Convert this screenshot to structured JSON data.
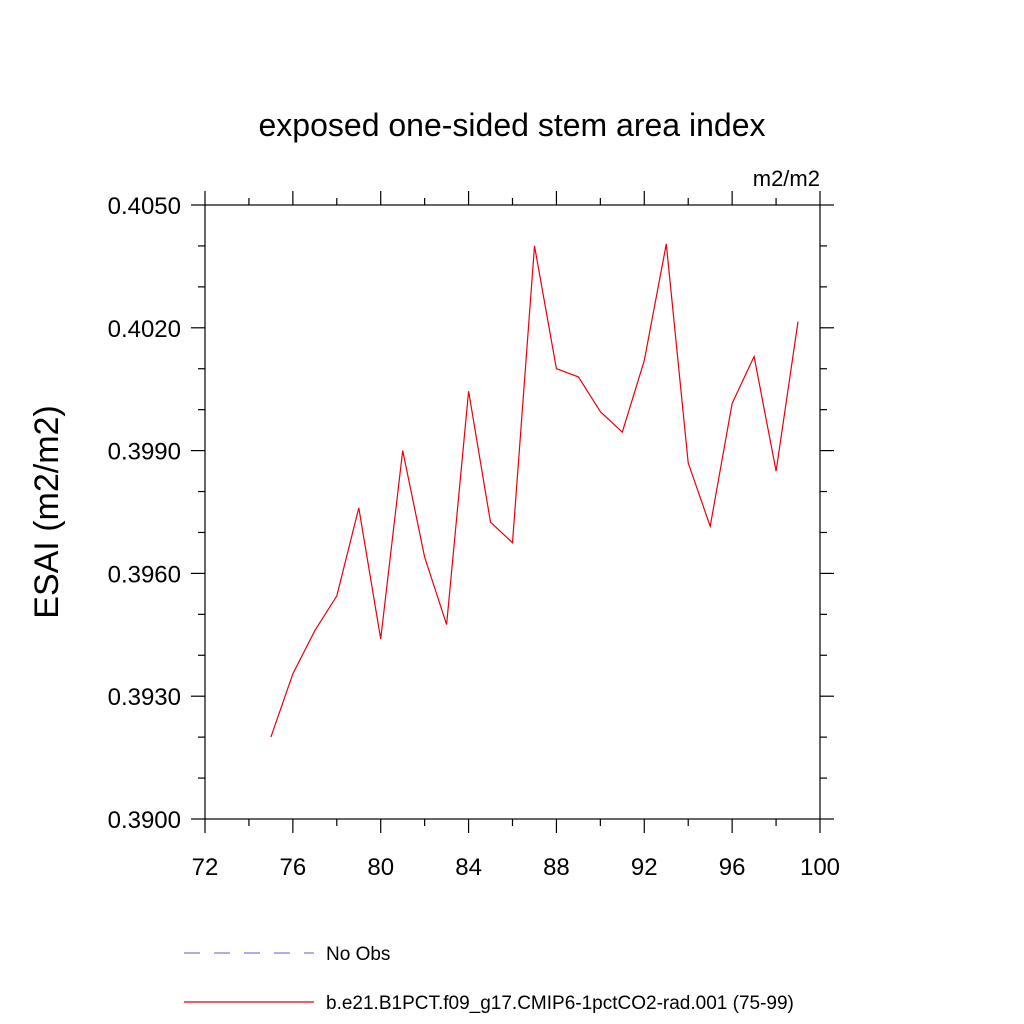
{
  "chart_data": {
    "type": "line",
    "title": "exposed one-sided stem area index",
    "units": "m2/m2",
    "ylabel": "ESAI  (m2/m2)",
    "xlabel": "",
    "xlim": [
      72,
      100
    ],
    "ylim": [
      0.39,
      0.405
    ],
    "x_ticks": [
      "72",
      "76",
      "80",
      "84",
      "88",
      "92",
      "96",
      "100"
    ],
    "y_ticks": [
      "0.3900",
      "0.3930",
      "0.3960",
      "0.3990",
      "0.4020",
      "0.4050"
    ],
    "grid": false,
    "legend_position": "bottom",
    "series": [
      {
        "name": "No Obs",
        "color": "#7b7bd6",
        "style": "dashed",
        "x": [],
        "y": []
      },
      {
        "name": "b.e21.B1PCT.f09_g17.CMIP6-1pctCO2-rad.001 (75-99)",
        "color": "#e8000b",
        "style": "solid",
        "x": [
          75,
          76,
          77,
          78,
          79,
          80,
          81,
          82,
          83,
          84,
          85,
          86,
          87,
          88,
          89,
          90,
          91,
          92,
          93,
          94,
          95,
          96,
          97,
          98,
          99
        ],
        "y": [
          0.392,
          0.39355,
          0.3946,
          0.39545,
          0.3976,
          0.3944,
          0.399,
          0.3964,
          0.39475,
          0.40045,
          0.39725,
          0.39675,
          0.404,
          0.401,
          0.4008,
          0.39995,
          0.39945,
          0.4012,
          0.40405,
          0.3987,
          0.39715,
          0.40015,
          0.4013,
          0.3985,
          0.40215
        ]
      }
    ]
  }
}
